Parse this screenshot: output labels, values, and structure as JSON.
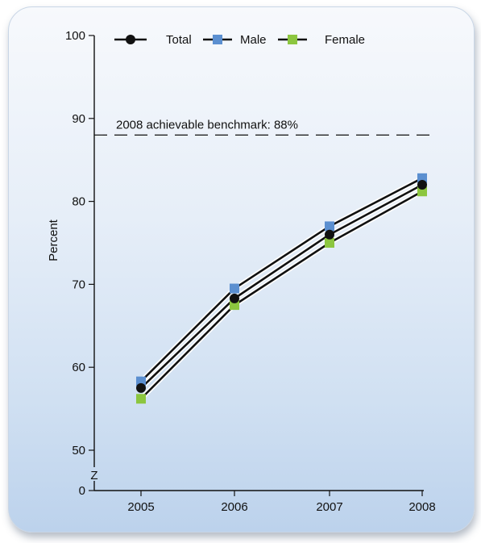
{
  "chart_data": {
    "type": "line",
    "categories": [
      "2005",
      "2006",
      "2007",
      "2008"
    ],
    "series": [
      {
        "name": "Total",
        "values": [
          57.5,
          68.3,
          76.0,
          82.0
        ],
        "color": "#111111",
        "marker": "circle"
      },
      {
        "name": "Male",
        "values": [
          58.3,
          69.5,
          77.0,
          82.8
        ],
        "color": "#5b8fd0",
        "marker": "square"
      },
      {
        "name": "Female",
        "values": [
          56.2,
          67.5,
          75.0,
          81.2
        ],
        "color": "#8cc63f",
        "marker": "square"
      }
    ],
    "ylabel": "Percent",
    "xlabel": "",
    "ylim": [
      0,
      100
    ],
    "yticks": [
      "0",
      "50",
      "60",
      "70",
      "80",
      "90",
      "100"
    ],
    "axis_break_symbol": "Z",
    "benchmark": {
      "label": "2008 achievable benchmark: 88%",
      "value": 88
    },
    "legend_position": "top",
    "grid": false
  }
}
